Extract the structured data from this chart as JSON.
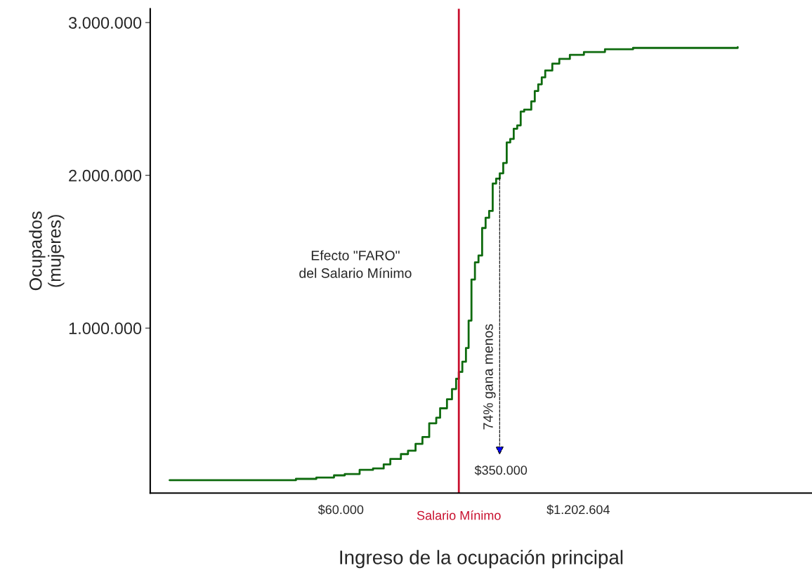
{
  "chart_data": {
    "type": "step",
    "xlabel": "Ingreso de la ocupación principal",
    "ylabel": "Ocupados\n(mujeres)",
    "log": "x",
    "xlim": [
      5400,
      23000000
    ],
    "ylim": [
      -80000,
      3090000
    ],
    "xticks": [
      {
        "value": 60000,
        "label": "$60.000"
      },
      {
        "value": 1202604,
        "label": "$1.202.604"
      }
    ],
    "yticks": [
      {
        "value": 1000000,
        "label": "1.000.000"
      },
      {
        "value": 2000000,
        "label": "2.000.000"
      },
      {
        "value": 3000000,
        "label": "3.000.000"
      }
    ],
    "grid": false,
    "legend": false,
    "marker": "none",
    "line_style": "solid",
    "ref_lines": [
      {
        "axis": "x",
        "value": 266000,
        "label": "Salario Mínimo",
        "color": "#c8102e"
      }
    ],
    "annotations": [
      "Efecto \"FARO\"\ndel Salario Mínimo",
      "74% gana menos",
      "$350.000"
    ],
    "series": [
      {
        "color": "#0f6b0f",
        "x": [
          6900,
          20000,
          34000,
          44000,
          55000,
          63000,
          76000,
          90000,
          103000,
          112000,
          128000,
          140000,
          154000,
          168000,
          183000,
          200000,
          210000,
          229000,
          244000,
          257000,
          266000,
          278000,
          291000,
          301000,
          312000,
          326000,
          341000,
          357000,
          373000,
          390000,
          408000,
          426000,
          446000,
          466000,
          487000,
          509000,
          532000,
          556000,
          581000,
          607000,
          664000,
          694000,
          725000,
          758000,
          792000,
          866000,
          946000,
          1081000,
          1291000,
          1684000,
          2400000,
          9000000
        ],
        "values": [
          4000,
          4000,
          13000,
          22000,
          36000,
          45000,
          72000,
          81000,
          108000,
          143000,
          175000,
          197000,
          242000,
          287000,
          377000,
          413000,
          475000,
          534000,
          601000,
          668000,
          713000,
          780000,
          870000,
          1049000,
          1318000,
          1430000,
          1475000,
          1655000,
          1722000,
          1767000,
          1946000,
          1978000,
          2013000,
          2081000,
          2215000,
          2238000,
          2305000,
          2327000,
          2417000,
          2430000,
          2484000,
          2552000,
          2596000,
          2641000,
          2686000,
          2731000,
          2762000,
          2789000,
          2807000,
          2825000,
          2834000,
          2839000
        ]
      }
    ]
  }
}
